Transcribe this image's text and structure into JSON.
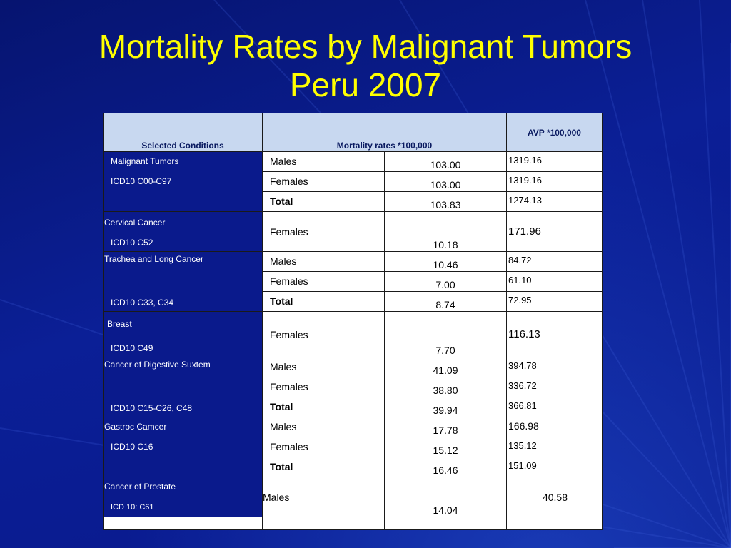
{
  "title": {
    "line1": "Mortality Rates by Malignant Tumors",
    "line2": "Peru 2007"
  },
  "table": {
    "headers": {
      "conditions": "Selected Conditions",
      "rates": "Mortality rates *100,000",
      "avp": "AVP *100,000"
    },
    "groups": [
      {
        "name": "Malignant Tumors",
        "code": "ICD10 C00-C97",
        "rows": [
          {
            "sex": "Males",
            "rate": "103.00",
            "avp": "1319.16"
          },
          {
            "sex": "Females",
            "rate": "103.00",
            "avp": "1319.16"
          },
          {
            "sex": "Total",
            "rate": "103.83",
            "avp": "1274.13"
          }
        ]
      },
      {
        "name": "Cervical Cancer",
        "code": "ICD10 C52",
        "rows": [
          {
            "sex": "Females",
            "rate": "10.18",
            "avp": "171.96"
          }
        ]
      },
      {
        "name": "Trachea and Long Cancer",
        "code": "ICD10 C33, C34",
        "rows": [
          {
            "sex": "Males",
            "rate": "10.46",
            "avp": "84.72"
          },
          {
            "sex": "Females",
            "rate": "7.00",
            "avp": "61.10"
          },
          {
            "sex": "Total",
            "rate": "8.74",
            "avp": "72.95"
          }
        ]
      },
      {
        "name": "Breast",
        "code": "ICD10 C49",
        "rows": [
          {
            "sex": "Females",
            "rate": "7.70",
            "avp": "116.13"
          }
        ]
      },
      {
        "name": "Cancer of Digestive Suxtem",
        "code": "ICD10 C15-C26, C48",
        "rows": [
          {
            "sex": "Males",
            "rate": "41.09",
            "avp": "394.78"
          },
          {
            "sex": "Females",
            "rate": "38.80",
            "avp": "336.72"
          },
          {
            "sex": "Total",
            "rate": "39.94",
            "avp": "366.81"
          }
        ]
      },
      {
        "name": "Gastroc Camcer",
        "code": "ICD10 C16",
        "rows": [
          {
            "sex": "Males",
            "rate": "17.78",
            "avp": "166.98"
          },
          {
            "sex": "Females",
            "rate": "15.12",
            "avp": "135.12"
          },
          {
            "sex": "Total",
            "rate": "16.46",
            "avp": "151.09"
          }
        ]
      },
      {
        "name": "Cancer of Prostate",
        "code": "ICD 10: C61",
        "rows": [
          {
            "sex": "Males",
            "rate": "14.04",
            "avp": "40.58"
          }
        ]
      }
    ]
  }
}
